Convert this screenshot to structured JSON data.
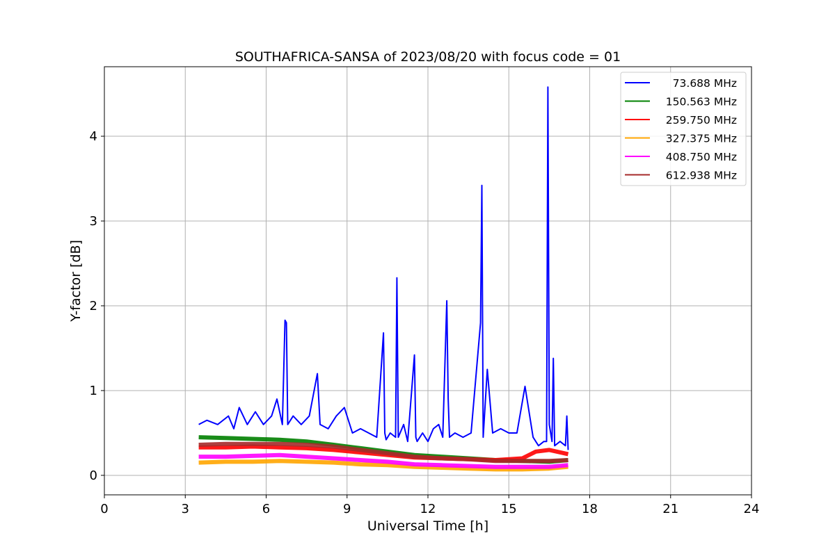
{
  "chart_data": {
    "type": "line",
    "title": "SOUTHAFRICA-SANSA of 2023/08/20 with focus code = 01",
    "xlabel": "Universal Time [h]",
    "ylabel": "Y-factor [dB]",
    "xlim": [
      0,
      24
    ],
    "ylim": [
      -0.23,
      4.82
    ],
    "xticks": [
      0,
      3,
      6,
      9,
      12,
      15,
      18,
      21,
      24
    ],
    "yticks": [
      0,
      1,
      2,
      3,
      4
    ],
    "grid": true,
    "legend_position": "top-right",
    "series": [
      {
        "name": "73.688 MHz",
        "color": "#0000ff",
        "x": [
          3.5,
          3.8,
          4.2,
          4.6,
          4.8,
          5.0,
          5.3,
          5.6,
          5.9,
          6.2,
          6.4,
          6.6,
          6.7,
          6.75,
          6.8,
          7.0,
          7.3,
          7.6,
          7.9,
          8.0,
          8.3,
          8.6,
          8.9,
          9.2,
          9.5,
          9.8,
          10.1,
          10.35,
          10.4,
          10.45,
          10.6,
          10.8,
          10.85,
          10.9,
          11.1,
          11.25,
          11.5,
          11.55,
          11.6,
          11.8,
          12.0,
          12.2,
          12.4,
          12.55,
          12.7,
          12.75,
          12.8,
          13.0,
          13.3,
          13.6,
          13.95,
          14.0,
          14.05,
          14.2,
          14.4,
          14.7,
          15.0,
          15.3,
          15.6,
          15.9,
          16.1,
          16.3,
          16.4,
          16.45,
          16.5,
          16.6,
          16.65,
          16.7,
          16.9,
          17.1,
          17.15,
          17.2
        ],
        "y": [
          0.6,
          0.65,
          0.6,
          0.7,
          0.55,
          0.8,
          0.6,
          0.75,
          0.6,
          0.7,
          0.9,
          0.6,
          1.83,
          1.8,
          0.6,
          0.7,
          0.6,
          0.7,
          1.2,
          0.6,
          0.55,
          0.7,
          0.8,
          0.5,
          0.55,
          0.5,
          0.45,
          1.68,
          0.5,
          0.42,
          0.5,
          0.45,
          2.33,
          0.45,
          0.6,
          0.4,
          1.42,
          0.45,
          0.4,
          0.5,
          0.4,
          0.55,
          0.6,
          0.45,
          2.06,
          0.9,
          0.45,
          0.5,
          0.45,
          0.5,
          1.8,
          3.42,
          0.45,
          1.25,
          0.5,
          0.55,
          0.5,
          0.5,
          1.05,
          0.45,
          0.35,
          0.4,
          0.4,
          4.58,
          0.6,
          0.4,
          1.38,
          0.35,
          0.4,
          0.35,
          0.7,
          0.3
        ]
      },
      {
        "name": "150.563 MHz",
        "color": "#008000",
        "x": [
          3.5,
          4.5,
          5.5,
          6.5,
          7.5,
          8.5,
          9.5,
          10.5,
          11.5,
          12.5,
          13.5,
          14.5,
          15.5,
          16.5,
          17.2
        ],
        "y": [
          0.45,
          0.44,
          0.43,
          0.42,
          0.4,
          0.36,
          0.32,
          0.28,
          0.24,
          0.22,
          0.2,
          0.18,
          0.17,
          0.16,
          0.18
        ]
      },
      {
        "name": "259.750 MHz",
        "color": "#ff0000",
        "x": [
          3.5,
          4.5,
          5.5,
          6.5,
          7.5,
          8.5,
          9.5,
          10.5,
          11.5,
          12.5,
          13.5,
          14.5,
          15.5,
          16.0,
          16.5,
          17.2
        ],
        "y": [
          0.33,
          0.33,
          0.34,
          0.33,
          0.32,
          0.3,
          0.27,
          0.24,
          0.21,
          0.2,
          0.19,
          0.18,
          0.2,
          0.28,
          0.3,
          0.25
        ]
      },
      {
        "name": "327.375 MHz",
        "color": "#ffa500",
        "x": [
          3.5,
          4.5,
          5.5,
          6.5,
          7.5,
          8.5,
          9.5,
          10.5,
          11.5,
          12.5,
          13.5,
          14.5,
          15.5,
          16.5,
          17.2
        ],
        "y": [
          0.15,
          0.16,
          0.16,
          0.17,
          0.16,
          0.15,
          0.13,
          0.12,
          0.1,
          0.09,
          0.08,
          0.07,
          0.07,
          0.08,
          0.1
        ]
      },
      {
        "name": "408.750 MHz",
        "color": "#ff00ff",
        "x": [
          3.5,
          4.5,
          5.5,
          6.5,
          7.5,
          8.5,
          9.5,
          10.5,
          11.5,
          12.5,
          13.5,
          14.5,
          15.5,
          16.5,
          17.2
        ],
        "y": [
          0.22,
          0.22,
          0.23,
          0.24,
          0.22,
          0.2,
          0.18,
          0.16,
          0.13,
          0.12,
          0.11,
          0.1,
          0.1,
          0.1,
          0.12
        ]
      },
      {
        "name": "612.938 MHz",
        "color": "#a52a2a",
        "x": [
          3.5,
          4.5,
          5.5,
          6.5,
          7.5,
          8.5,
          9.5,
          10.5,
          11.5,
          12.5,
          13.5,
          14.5,
          15.5,
          16.5,
          17.2
        ],
        "y": [
          0.36,
          0.37,
          0.37,
          0.37,
          0.36,
          0.34,
          0.3,
          0.26,
          0.22,
          0.2,
          0.19,
          0.17,
          0.17,
          0.17,
          0.18
        ]
      }
    ]
  }
}
